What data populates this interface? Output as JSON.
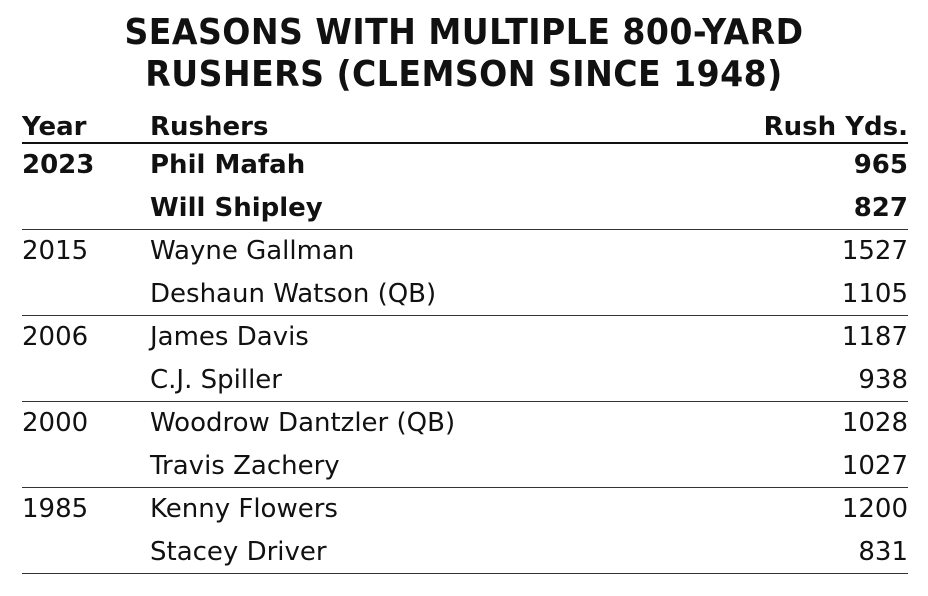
{
  "title": [
    "SEASONS WITH MULTIPLE 800-YARD",
    "RUSHERS (CLEMSON SINCE 1948)"
  ],
  "table": {
    "headers": [
      "Year",
      "Rushers",
      "Rush Yds."
    ],
    "groups": [
      {
        "year": "2023",
        "rushers": [
          {
            "name": "Phil Mafah",
            "yards": 965
          },
          {
            "name": "Will Shipley",
            "yards": 827
          }
        ]
      },
      {
        "year": "2015",
        "rushers": [
          {
            "name": "Wayne Gallman",
            "yards": 1527
          },
          {
            "name": "Deshaun Watson (QB)",
            "yards": 1105
          }
        ]
      },
      {
        "year": "2006",
        "rushers": [
          {
            "name": "James Davis",
            "yards": 1187
          },
          {
            "name": "C.J. Spiller",
            "yards": 938
          }
        ]
      },
      {
        "year": "2000",
        "rushers": [
          {
            "name": "Woodrow Dantzler (QB)",
            "yards": 1028
          },
          {
            "name": "Travis Zachery",
            "yards": 1027
          }
        ]
      },
      {
        "year": "1985",
        "rushers": [
          {
            "name": "Kenny Flowers",
            "yards": 1200
          },
          {
            "name": "Stacey Driver",
            "yards": 831
          }
        ]
      }
    ]
  }
}
